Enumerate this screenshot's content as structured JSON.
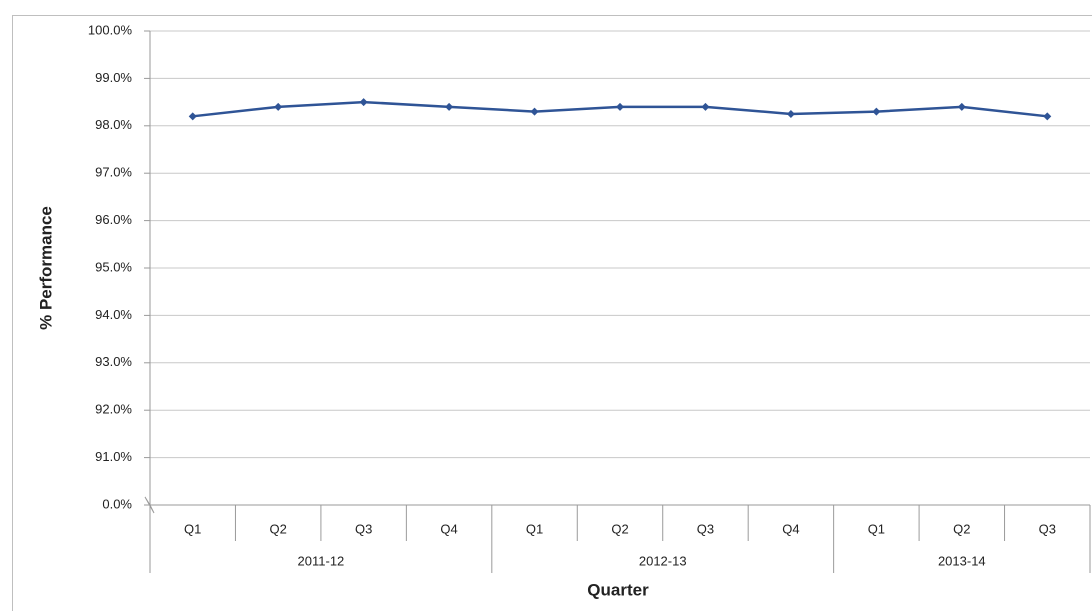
{
  "chart_data": {
    "type": "line",
    "x_label": "Quarter",
    "y_label": "% Performance",
    "categories": [
      "Q1",
      "Q2",
      "Q3",
      "Q4",
      "Q1",
      "Q2",
      "Q3",
      "Q4",
      "Q1",
      "Q2",
      "Q3"
    ],
    "groups": [
      "2011-12",
      "2011-12",
      "2011-12",
      "2011-12",
      "2012-13",
      "2012-13",
      "2012-13",
      "2012-13",
      "2013-14",
      "2013-14",
      "2013-14"
    ],
    "values": [
      98.2,
      98.4,
      98.5,
      98.4,
      98.3,
      98.4,
      98.4,
      98.25,
      98.3,
      98.4,
      98.2
    ],
    "color": "#2f5496",
    "ylim": [
      0,
      100
    ],
    "ybreak": [
      0,
      90
    ],
    "yticks": [
      {
        "value": 0,
        "label": "0.0%"
      },
      {
        "value": 91,
        "label": "91.0%"
      },
      {
        "value": 92,
        "label": "92.0%"
      },
      {
        "value": 93,
        "label": "93.0%"
      },
      {
        "value": 94,
        "label": "94.0%"
      },
      {
        "value": 95,
        "label": "95.0%"
      },
      {
        "value": 96,
        "label": "96.0%"
      },
      {
        "value": 97,
        "label": "97.0%"
      },
      {
        "value": 98,
        "label": "98.0%"
      },
      {
        "value": 99,
        "label": "99.0%"
      },
      {
        "value": 100,
        "label": "100.0%"
      }
    ],
    "grid": true
  }
}
